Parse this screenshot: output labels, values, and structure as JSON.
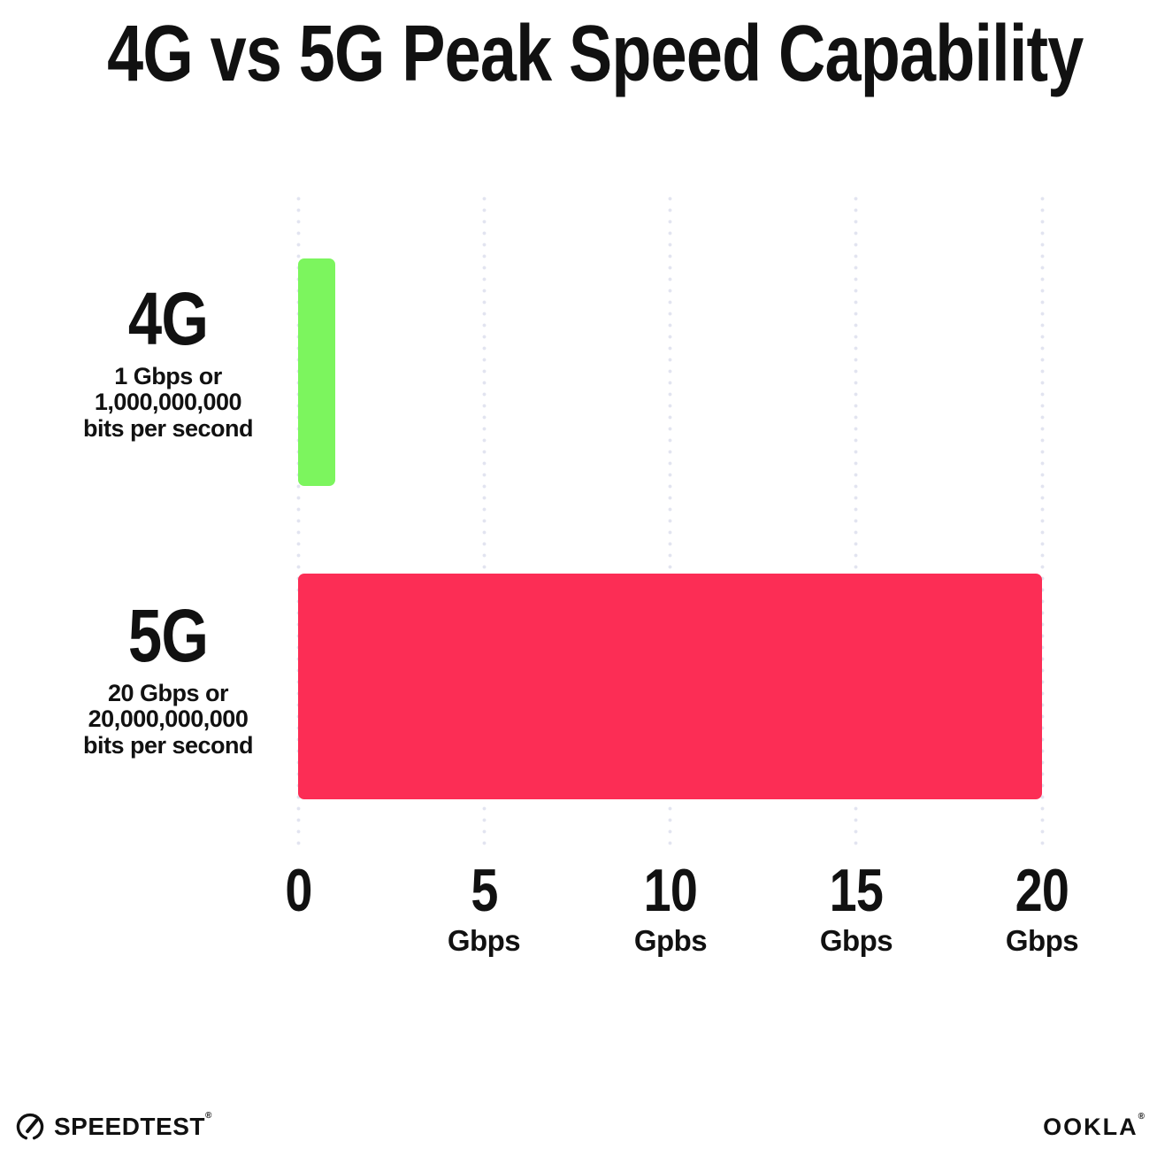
{
  "title": "4G vs 5G Peak Speed Capability",
  "chart_data": {
    "type": "bar",
    "orientation": "horizontal",
    "title": "4G vs 5G Peak Speed Capability",
    "categories": [
      "4G",
      "5G"
    ],
    "values": [
      1,
      20
    ],
    "value_unit": "Gbps",
    "xlim": [
      0,
      20
    ],
    "xticks": [
      0,
      5,
      10,
      15,
      20
    ],
    "grid": "vertical dotted gridlines at each tick",
    "legend": "none",
    "bar_colors": [
      "#7cf55e",
      "#fc2d55"
    ],
    "annotations": [
      "1 Gbps or 1,000,000,000 bits per second",
      "20 Gbps or 20,000,000,000 bits per second"
    ]
  },
  "rows": [
    {
      "label": "4G",
      "desc_lines": [
        "1 Gbps or",
        "1,000,000,000",
        "bits per second"
      ],
      "value": 1,
      "color": "#7cf55e"
    },
    {
      "label": "5G",
      "desc_lines": [
        "20 Gbps or",
        "20,000,000,000",
        "bits per second"
      ],
      "value": 20,
      "color": "#fc2d55"
    }
  ],
  "xaxis": {
    "ticks": [
      {
        "value": "0",
        "unit": ""
      },
      {
        "value": "5",
        "unit": "Gbps"
      },
      {
        "value": "10",
        "unit": "Gpbs"
      },
      {
        "value": "15",
        "unit": "Gbps"
      },
      {
        "value": "20",
        "unit": "Gbps"
      }
    ]
  },
  "footer": {
    "speedtest_brand": "SPEEDTEST",
    "speedtest_mark": "®",
    "ookla_brand": "OOKLA",
    "ookla_mark": "®"
  },
  "colors": {
    "bar_4g": "#7cf55e",
    "bar_5g": "#fc2d55",
    "gridline": "#e2e4f0",
    "text": "#111111",
    "background": "#ffffff"
  }
}
